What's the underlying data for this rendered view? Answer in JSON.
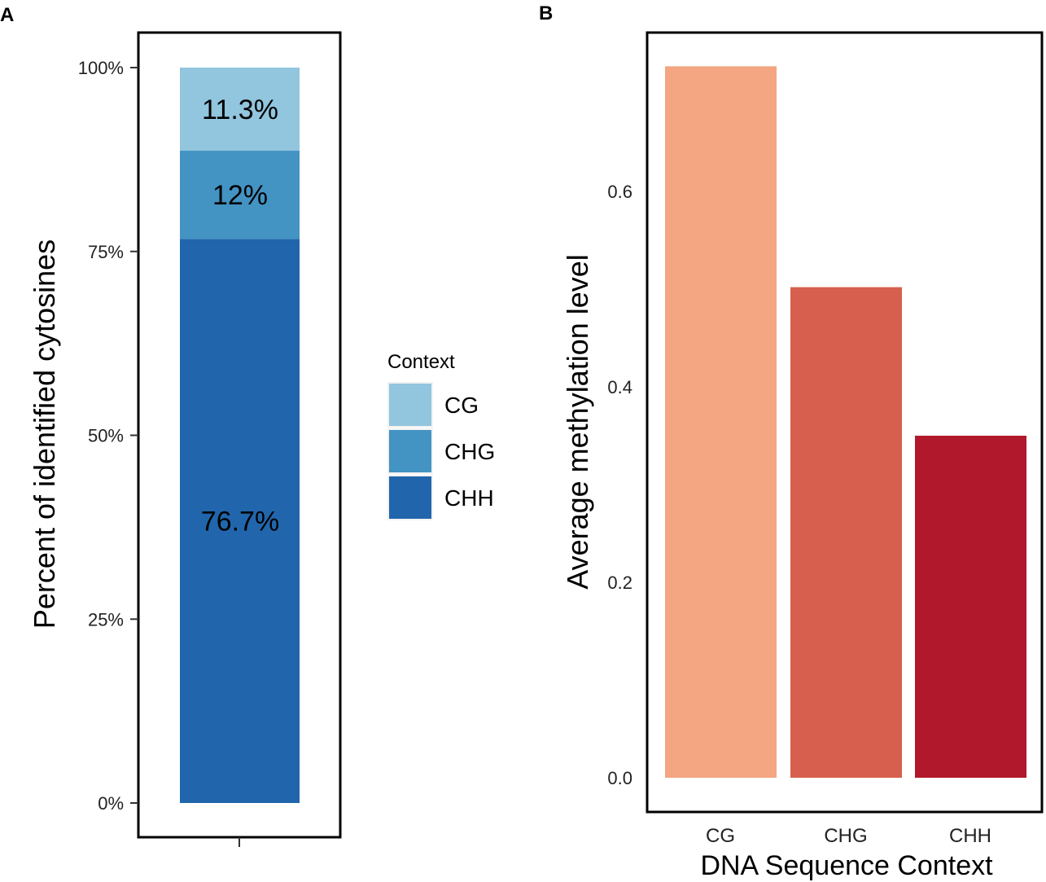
{
  "chart_data": [
    {
      "panel": "A",
      "type": "bar",
      "stacked": true,
      "ylabel": "Percent of identified cytosines",
      "yticks": [
        "0%",
        "25%",
        "50%",
        "75%",
        "100%"
      ],
      "ylim": [
        0,
        100
      ],
      "legend": {
        "title": "Context",
        "placement": "right"
      },
      "series": [
        {
          "name": "CHH",
          "value": 76.7,
          "label": "76.7%",
          "color": "#2166ac"
        },
        {
          "name": "CHG",
          "value": 12.0,
          "label": "12%",
          "color": "#4393c3"
        },
        {
          "name": "CG",
          "value": 11.3,
          "label": "11.3%",
          "color": "#92c5de"
        }
      ]
    },
    {
      "panel": "B",
      "type": "bar",
      "xlabel": "DNA Sequence Context",
      "ylabel": "Average methylation level",
      "yticks": [
        "0.0",
        "0.2",
        "0.4",
        "0.6"
      ],
      "ylim": [
        0,
        0.8
      ],
      "categories": [
        "CG",
        "CHG",
        "CHH"
      ],
      "values": [
        0.728,
        0.502,
        0.35
      ],
      "colors": [
        "#f4a582",
        "#d6604d",
        "#b2182b"
      ]
    }
  ]
}
